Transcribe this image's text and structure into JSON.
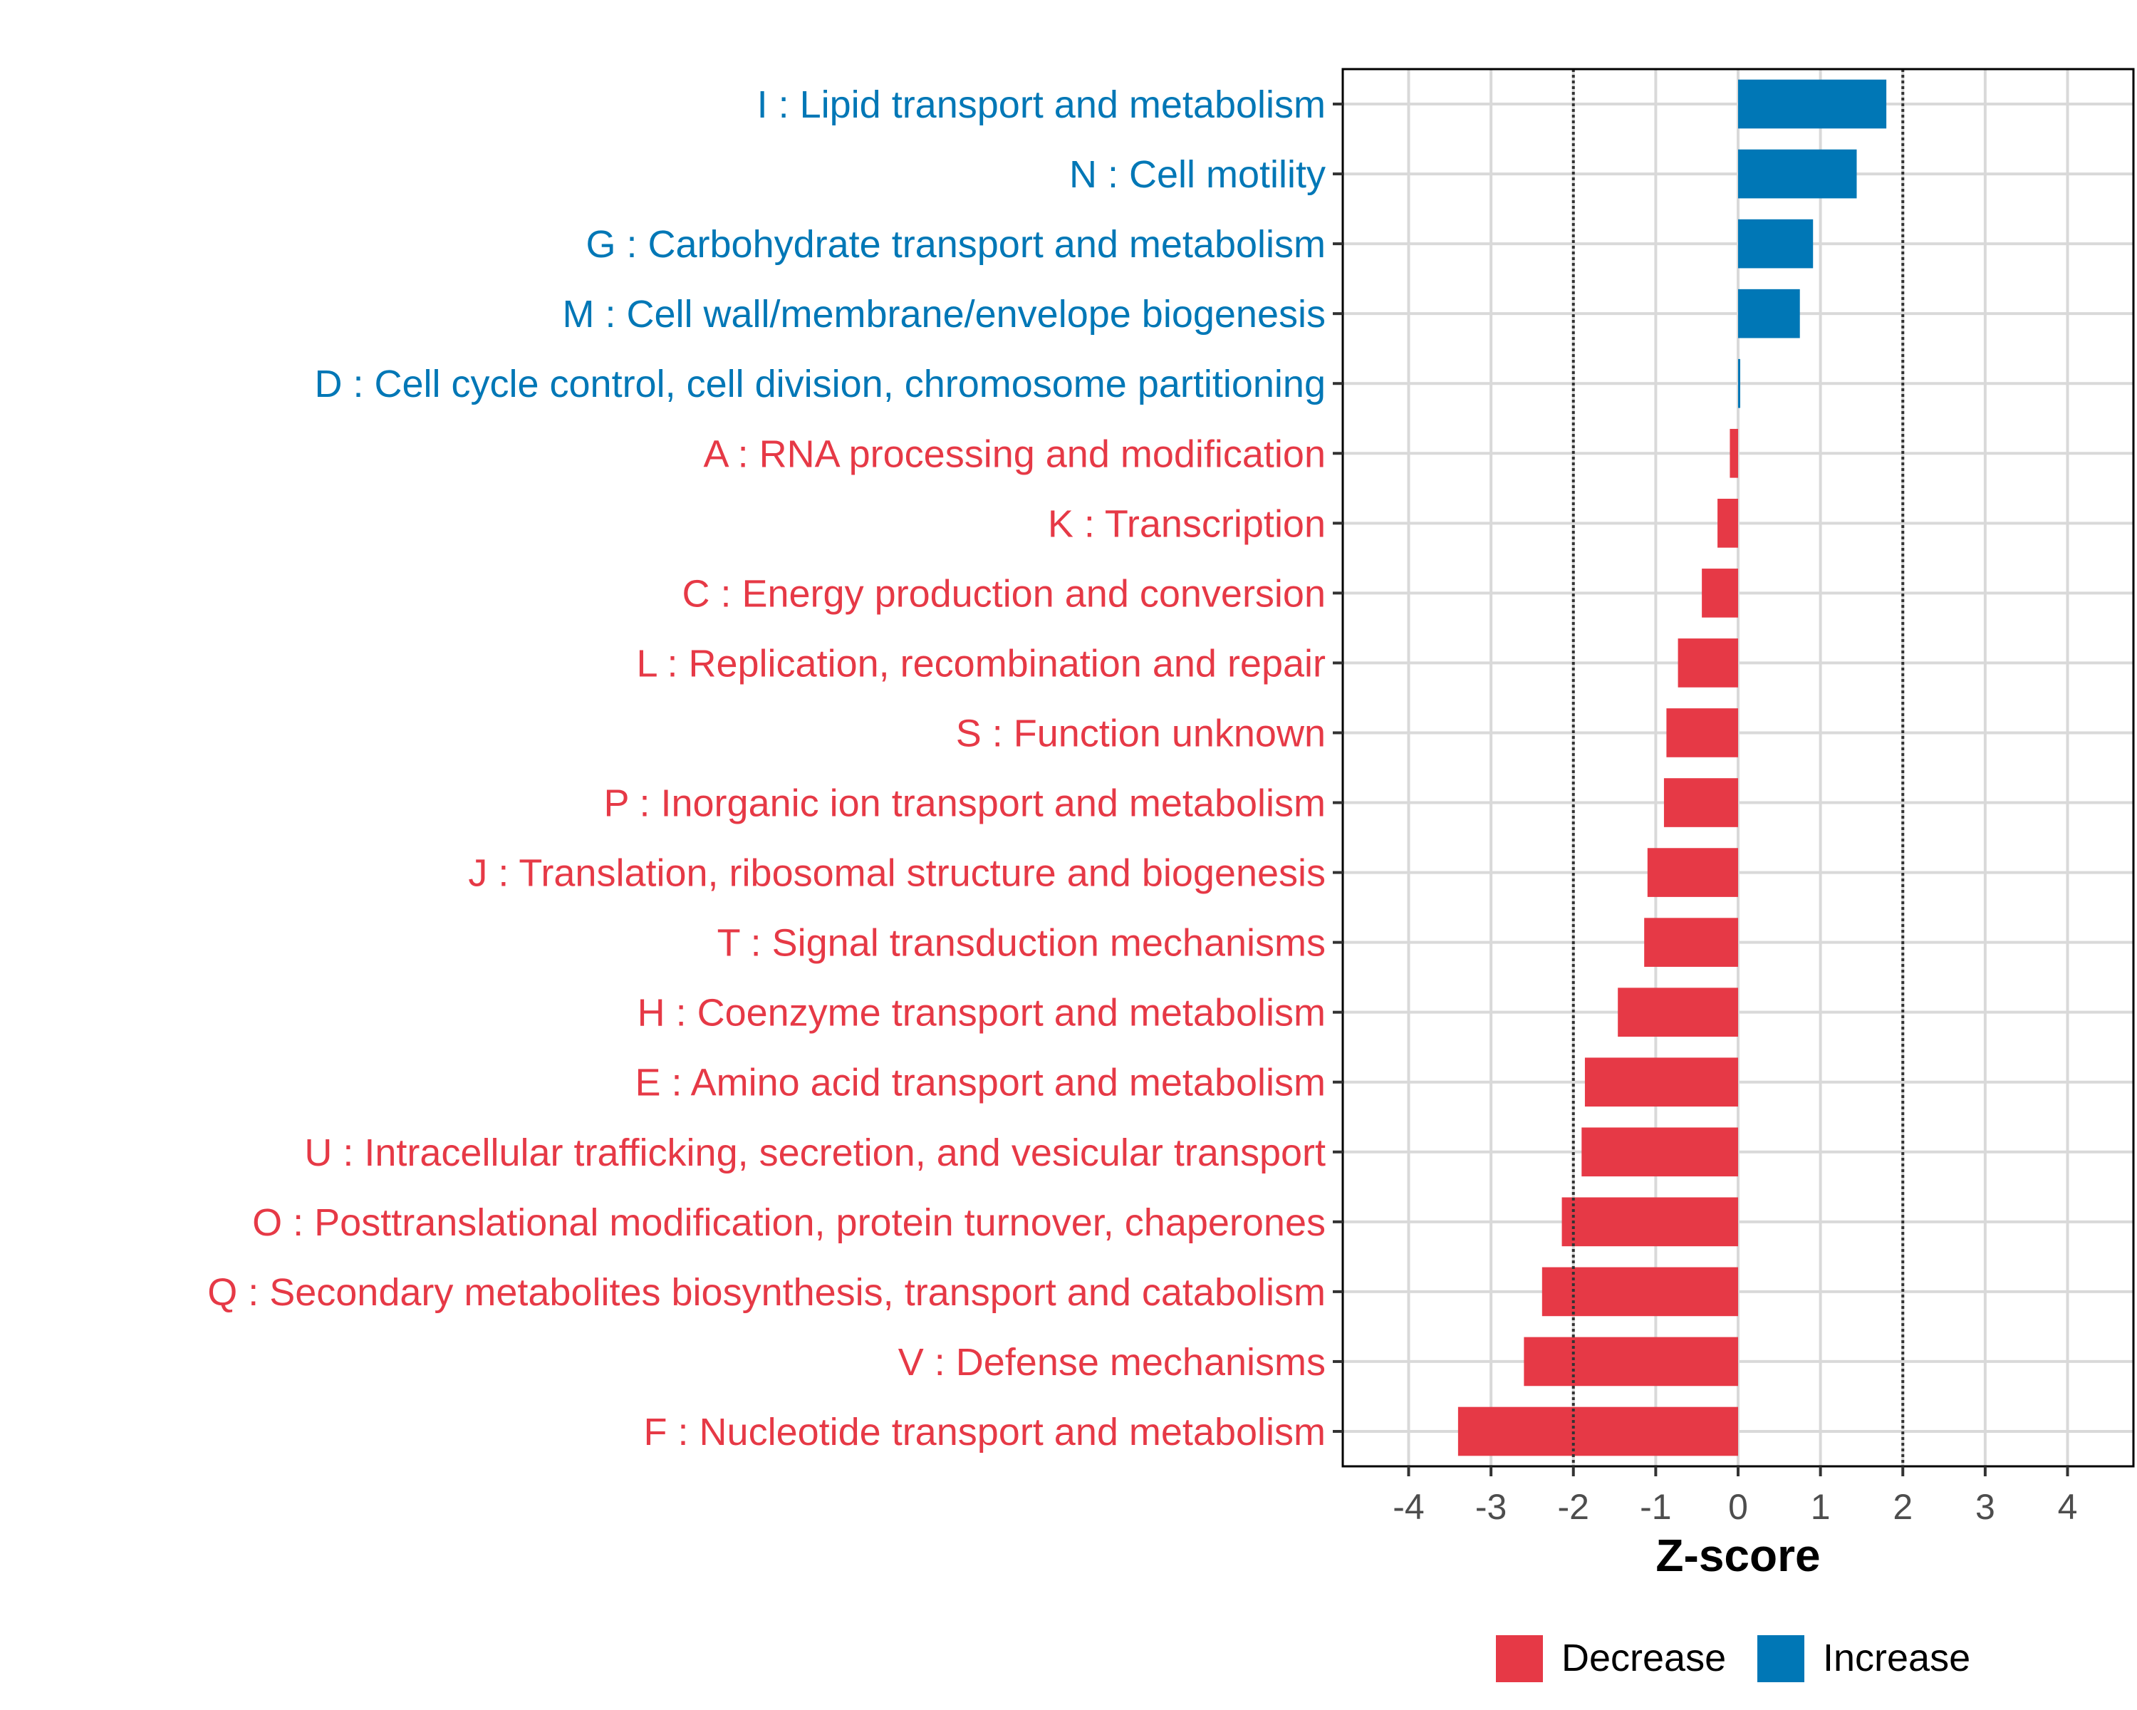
{
  "chart_data": {
    "type": "bar",
    "orientation": "horizontal",
    "title": "",
    "xlabel": "Z-score",
    "ylabel": "",
    "xlim": [
      -4.8,
      4.8
    ],
    "xticks": [
      -4,
      -3,
      -2,
      -1,
      0,
      1,
      2,
      3,
      4
    ],
    "xtick_labels": [
      "-4",
      "-3",
      "-2",
      "-1",
      "0",
      "1",
      "2",
      "3",
      "4"
    ],
    "reference_lines": [
      -2,
      2
    ],
    "grid": true,
    "legend_position": "bottom",
    "colors": {
      "Decrease": "#e63946",
      "Increase": "#0077b6"
    },
    "legend": [
      {
        "label": "Decrease",
        "color": "#e63946"
      },
      {
        "label": "Increase",
        "color": "#0077b6"
      }
    ],
    "categories": [
      "I : Lipid transport and metabolism",
      "N : Cell motility",
      "G : Carbohydrate transport and metabolism",
      "M : Cell wall/membrane/envelope biogenesis",
      "D : Cell cycle control, cell division, chromosome partitioning",
      "A : RNA processing and modification",
      "K : Transcription",
      "C : Energy production and conversion",
      "L : Replication, recombination and repair",
      "S : Function unknown",
      "P : Inorganic ion transport and metabolism",
      "J : Translation, ribosomal structure and biogenesis",
      "T : Signal transduction mechanisms",
      "H : Coenzyme transport and metabolism",
      "E : Amino acid transport and metabolism",
      "U : Intracellular trafficking, secretion, and vesicular transport",
      "O : Posttranslational modification, protein turnover, chaperones",
      "Q : Secondary metabolites biosynthesis, transport and catabolism",
      "V : Defense mechanisms",
      "F : Nucleotide transport and metabolism"
    ],
    "values": [
      1.8,
      1.44,
      0.91,
      0.75,
      0.02,
      -0.1,
      -0.25,
      -0.44,
      -0.73,
      -0.87,
      -0.9,
      -1.1,
      -1.14,
      -1.46,
      -1.86,
      -1.9,
      -2.14,
      -2.38,
      -2.6,
      -3.4
    ],
    "groups": [
      "Increase",
      "Increase",
      "Increase",
      "Increase",
      "Increase",
      "Decrease",
      "Decrease",
      "Decrease",
      "Decrease",
      "Decrease",
      "Decrease",
      "Decrease",
      "Decrease",
      "Decrease",
      "Decrease",
      "Decrease",
      "Decrease",
      "Decrease",
      "Decrease",
      "Decrease"
    ]
  }
}
